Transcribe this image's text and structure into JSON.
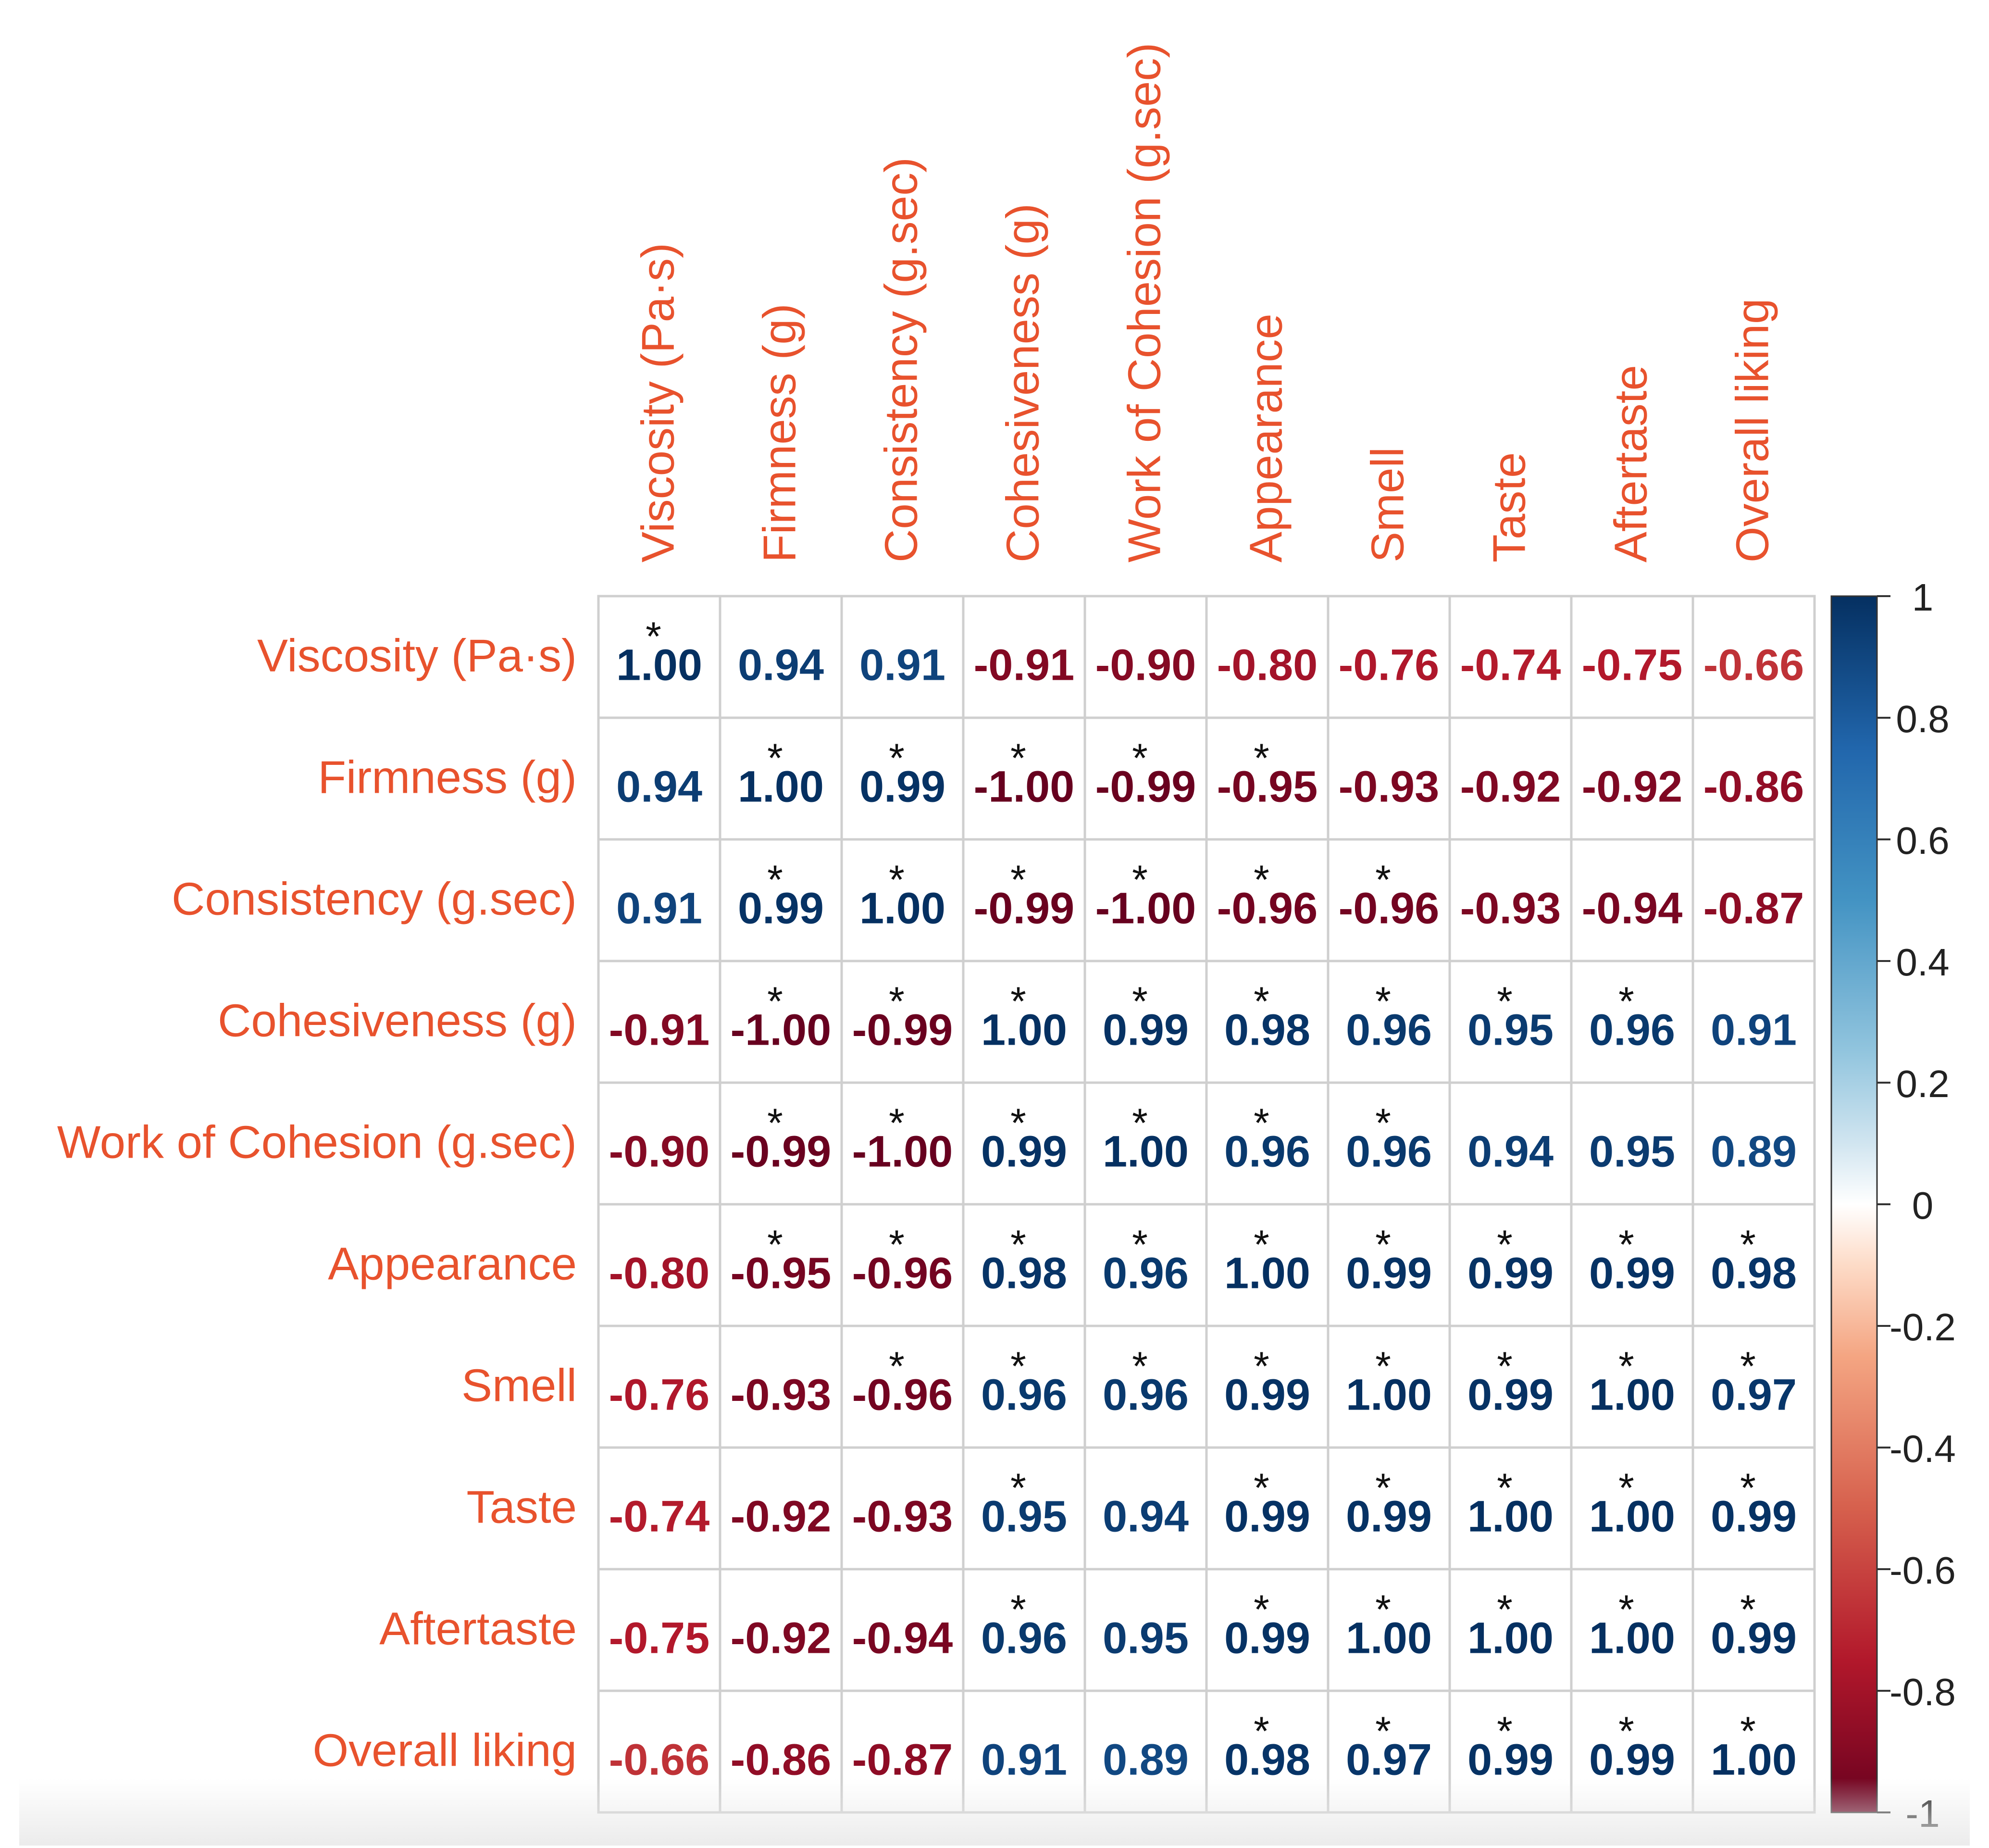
{
  "chart_data": {
    "type": "heatmap",
    "title": "",
    "variables": [
      "Viscosity (Pa·s)",
      "Firmness (g)",
      "Consistency (g.sec)",
      "Cohesiveness (g)",
      "Work of Cohesion (g.sec)",
      "Appearance",
      "Smell",
      "Taste",
      "Aftertaste",
      "Overall liking"
    ],
    "values": [
      [
        1.0,
        0.94,
        0.91,
        -0.91,
        -0.9,
        -0.8,
        -0.76,
        -0.74,
        -0.75,
        -0.66
      ],
      [
        0.94,
        1.0,
        0.99,
        -1.0,
        -0.99,
        -0.95,
        -0.93,
        -0.92,
        -0.92,
        -0.86
      ],
      [
        0.91,
        0.99,
        1.0,
        -0.99,
        -1.0,
        -0.96,
        -0.96,
        -0.93,
        -0.94,
        -0.87
      ],
      [
        -0.91,
        -1.0,
        -0.99,
        1.0,
        0.99,
        0.98,
        0.96,
        0.95,
        0.96,
        0.91
      ],
      [
        -0.9,
        -0.99,
        -1.0,
        0.99,
        1.0,
        0.96,
        0.96,
        0.94,
        0.95,
        0.89
      ],
      [
        -0.8,
        -0.95,
        -0.96,
        0.98,
        0.96,
        1.0,
        0.99,
        0.99,
        0.99,
        0.98
      ],
      [
        -0.76,
        -0.93,
        -0.96,
        0.96,
        0.96,
        0.99,
        1.0,
        0.99,
        1.0,
        0.97
      ],
      [
        -0.74,
        -0.92,
        -0.93,
        0.95,
        0.94,
        0.99,
        0.99,
        1.0,
        1.0,
        0.99
      ],
      [
        -0.75,
        -0.92,
        -0.94,
        0.96,
        0.95,
        0.99,
        1.0,
        1.0,
        1.0,
        0.99
      ],
      [
        -0.66,
        -0.86,
        -0.87,
        0.91,
        0.89,
        0.98,
        0.97,
        0.99,
        0.99,
        1.0
      ]
    ],
    "significance_marker": "*",
    "significant": [
      [
        1,
        0,
        0,
        0,
        0,
        0,
        0,
        0,
        0,
        0
      ],
      [
        0,
        1,
        1,
        1,
        1,
        1,
        0,
        0,
        0,
        0
      ],
      [
        0,
        1,
        1,
        1,
        1,
        1,
        1,
        0,
        0,
        0
      ],
      [
        0,
        1,
        1,
        1,
        1,
        1,
        1,
        1,
        1,
        0
      ],
      [
        0,
        1,
        1,
        1,
        1,
        1,
        1,
        0,
        0,
        0
      ],
      [
        0,
        1,
        1,
        1,
        1,
        1,
        1,
        1,
        1,
        1
      ],
      [
        0,
        0,
        1,
        1,
        1,
        1,
        1,
        1,
        1,
        1
      ],
      [
        0,
        0,
        0,
        1,
        0,
        1,
        1,
        1,
        1,
        1
      ],
      [
        0,
        0,
        0,
        1,
        0,
        1,
        1,
        1,
        1,
        1
      ],
      [
        0,
        0,
        0,
        0,
        0,
        1,
        1,
        1,
        1,
        1
      ]
    ],
    "color_scale": {
      "min": -1,
      "max": 1,
      "ticks": [
        1,
        0.8,
        0.6,
        0.4,
        0.2,
        0,
        -0.2,
        -0.4,
        -0.6,
        -0.8,
        -1
      ],
      "tick_labels": [
        "1",
        "0.8",
        "0.6",
        "0.4",
        "0.2",
        "0",
        "-0.2",
        "-0.4",
        "-0.6",
        "-0.8",
        "-1"
      ],
      "stops": [
        {
          "value": -1.0,
          "color": "#67001F"
        },
        {
          "value": -0.75,
          "color": "#B2182B"
        },
        {
          "value": -0.5,
          "color": "#D6604D"
        },
        {
          "value": -0.25,
          "color": "#F4A582"
        },
        {
          "value": -0.1,
          "color": "#FDDBC7"
        },
        {
          "value": 0.0,
          "color": "#FFFFFF"
        },
        {
          "value": 0.1,
          "color": "#D1E5F0"
        },
        {
          "value": 0.25,
          "color": "#92C5DE"
        },
        {
          "value": 0.5,
          "color": "#4393C3"
        },
        {
          "value": 0.75,
          "color": "#2166AC"
        },
        {
          "value": 1.0,
          "color": "#053061"
        }
      ]
    },
    "colors": {
      "variable_labels": "#E8522D",
      "grid_lines": "#CFCFCF",
      "significance_marker": "#111111",
      "legend_text": "#222222"
    }
  }
}
